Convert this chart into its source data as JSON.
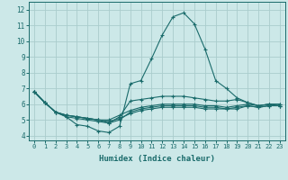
{
  "xlabel": "Humidex (Indice chaleur)",
  "bg_color": "#cce8e8",
  "grid_color": "#aacccc",
  "line_color": "#1a6b6b",
  "xlim": [
    -0.5,
    23.5
  ],
  "ylim": [
    3.7,
    12.5
  ],
  "xticks": [
    0,
    1,
    2,
    3,
    4,
    5,
    6,
    7,
    8,
    9,
    10,
    11,
    12,
    13,
    14,
    15,
    16,
    17,
    18,
    19,
    20,
    21,
    22,
    23
  ],
  "yticks": [
    4,
    5,
    6,
    7,
    8,
    9,
    10,
    11,
    12
  ],
  "line1_y": [
    6.8,
    6.1,
    5.5,
    5.2,
    4.7,
    4.6,
    4.3,
    4.2,
    4.6,
    7.3,
    7.5,
    8.9,
    10.4,
    11.55,
    11.8,
    11.1,
    9.5,
    7.5,
    7.0,
    6.4,
    6.1,
    5.9,
    6.0,
    6.0
  ],
  "line2_y": [
    6.8,
    6.1,
    5.5,
    5.2,
    5.1,
    5.0,
    4.9,
    4.8,
    5.2,
    6.2,
    6.3,
    6.4,
    6.5,
    6.5,
    6.5,
    6.4,
    6.3,
    6.2,
    6.2,
    6.3,
    6.1,
    5.9,
    6.0,
    6.0
  ],
  "line3_y": [
    6.8,
    6.1,
    5.5,
    5.3,
    5.2,
    5.1,
    5.0,
    5.0,
    5.3,
    5.6,
    5.8,
    5.9,
    6.0,
    6.0,
    6.0,
    6.0,
    5.9,
    5.9,
    5.8,
    5.9,
    6.0,
    5.9,
    6.0,
    5.9
  ],
  "line4_y": [
    6.8,
    6.1,
    5.5,
    5.3,
    5.2,
    5.1,
    5.0,
    4.8,
    5.0,
    5.5,
    5.7,
    5.8,
    5.9,
    5.9,
    5.9,
    5.9,
    5.8,
    5.8,
    5.7,
    5.8,
    5.9,
    5.8,
    5.9,
    5.9
  ],
  "line5_y": [
    6.8,
    6.1,
    5.5,
    5.3,
    5.2,
    5.1,
    5.0,
    4.9,
    5.1,
    5.4,
    5.6,
    5.7,
    5.8,
    5.8,
    5.8,
    5.8,
    5.7,
    5.7,
    5.7,
    5.7,
    5.9,
    5.8,
    5.9,
    5.9
  ]
}
